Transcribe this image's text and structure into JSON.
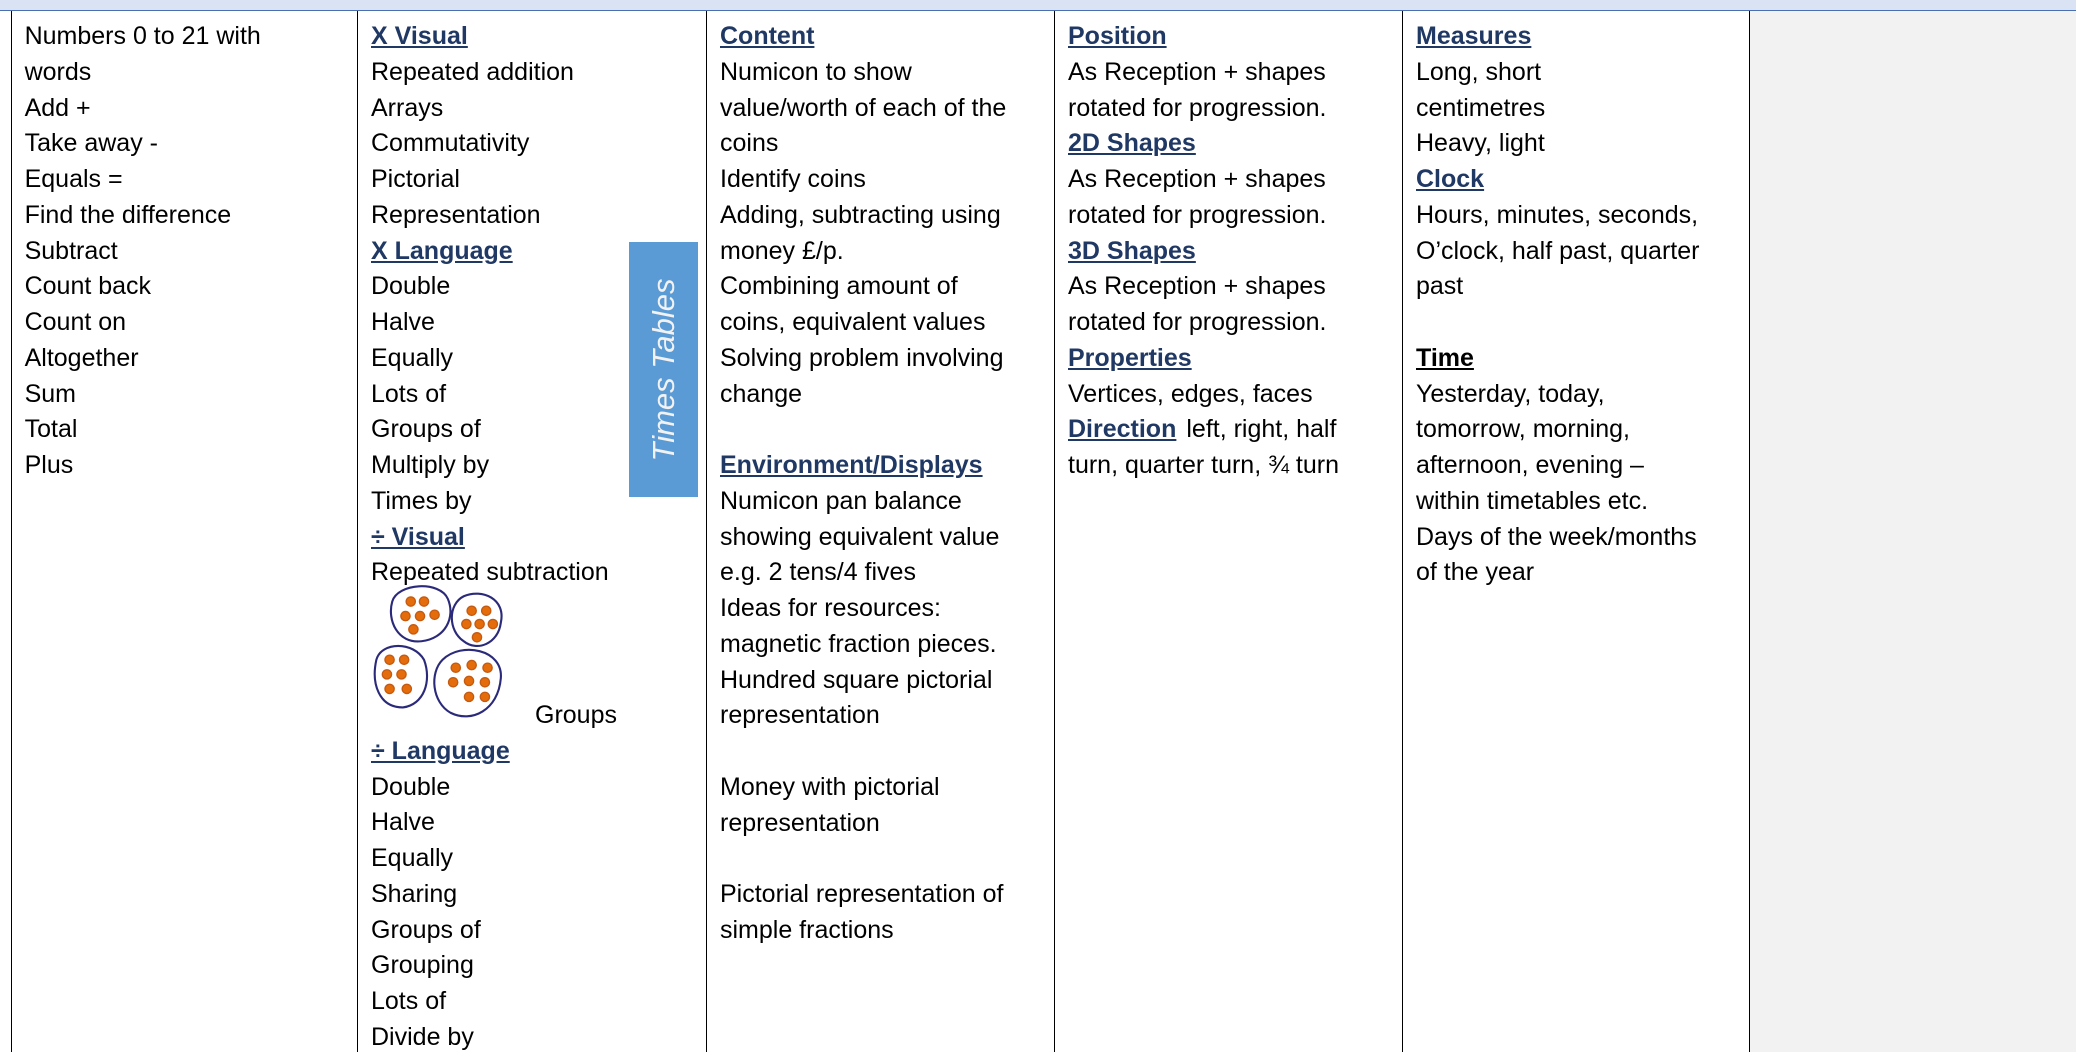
{
  "side_label": "Times Tables",
  "columns": [
    {
      "items": [
        "Numbers 0 to 21 with",
        "words",
        "Add +",
        "Take away -",
        "Equals =",
        "Find the difference",
        "Subtract",
        "Count back",
        "Count on",
        "Altogether",
        "Sum",
        "Total",
        "Plus"
      ]
    },
    {
      "items": [
        "X  Visual",
        "Repeated addition",
        "Arrays",
        "Commutativity",
        "Pictorial",
        "Representation",
        "X  Language",
        "Double",
        "Halve",
        "Equally",
        "Lots of",
        "Groups of",
        "Multiply by",
        "Times by",
        "÷  Visual",
        "Repeated subtraction",
        "Groups",
        "÷  Language",
        "Double",
        "Halve",
        "Equally",
        "Sharing",
        "Groups of",
        "Grouping",
        "Lots of",
        "Divide by"
      ]
    },
    {
      "items": [
        "Content",
        "Numicon to show",
        "value/worth of each of the",
        "coins",
        "Identify coins",
        "Adding, subtracting using",
        "money £/p.",
        "Combining amount of",
        "coins, equivalent values",
        "Solving problem involving",
        "change",
        "Environment/Displays",
        "Numicon pan balance",
        "showing equivalent value",
        "e.g. 2 tens/4 fives",
        "Ideas for resources:",
        "magnetic fraction pieces.",
        "Hundred square pictorial",
        "representation",
        "Money with pictorial",
        "representation",
        "Pictorial representation of",
        "simple fractions"
      ]
    },
    {
      "items": [
        "Position",
        "As Reception + shapes",
        "rotated for progression.",
        "2D Shapes",
        "As Reception + shapes",
        "rotated for progression.",
        "3D Shapes",
        "As Reception + shapes",
        "rotated for progression.",
        "Properties",
        "Vertices, edges, faces",
        "Direction",
        "left, right, half",
        "turn, quarter turn, ¾ turn"
      ]
    },
    {
      "items": [
        "Measures",
        "Long, short",
        "centimetres",
        "Heavy, light",
        "Clock",
        "Hours, minutes, seconds,",
        "O’clock, half past, quarter",
        "past",
        "Time",
        "Yesterday, today,",
        "tomorrow, morning,",
        "afternoon, evening –",
        "within timetables etc.",
        "Days of the week/months",
        "of the year"
      ]
    }
  ]
}
